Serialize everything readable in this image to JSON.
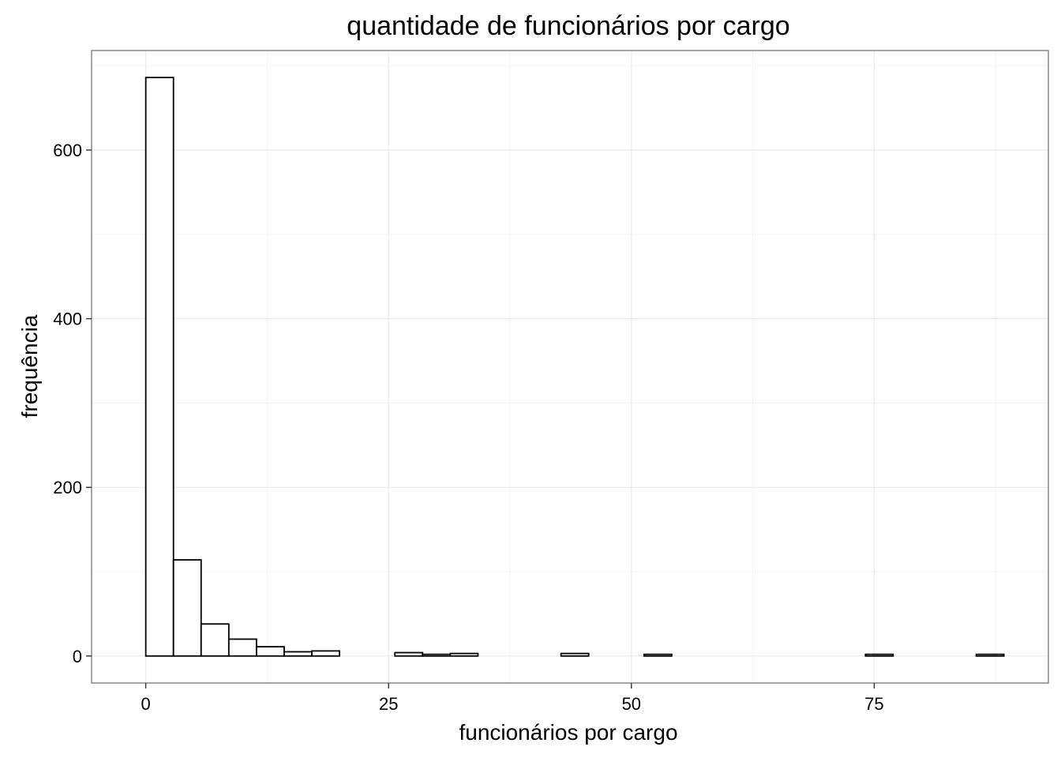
{
  "chart_data": {
    "type": "bar",
    "subtype": "histogram",
    "title": "quantidade de funcionários por cargo",
    "xlabel": "funcionários por cargo",
    "ylabel": "frequência",
    "xlim": [
      -5.58,
      92.93
    ],
    "ylim": [
      -32,
      718
    ],
    "xticks": [
      0,
      25,
      50,
      75
    ],
    "xtick_labels": [
      "0",
      "25",
      "50",
      "75"
    ],
    "yticks": [
      0,
      200,
      400,
      600
    ],
    "ytick_labels": [
      "0",
      "200",
      "400",
      "600"
    ],
    "grid": true,
    "bin_width": 2.85,
    "bins": [
      {
        "x0": -2.85,
        "x1": 0.0,
        "count": 0
      },
      {
        "x0": 0.0,
        "x1": 2.85,
        "count": 686
      },
      {
        "x0": 2.85,
        "x1": 5.7,
        "count": 114
      },
      {
        "x0": 5.7,
        "x1": 8.55,
        "count": 38
      },
      {
        "x0": 8.55,
        "x1": 11.4,
        "count": 20
      },
      {
        "x0": 11.4,
        "x1": 14.25,
        "count": 11
      },
      {
        "x0": 14.25,
        "x1": 17.1,
        "count": 5
      },
      {
        "x0": 17.1,
        "x1": 19.95,
        "count": 6
      },
      {
        "x0": 19.95,
        "x1": 22.8,
        "count": 0
      },
      {
        "x0": 22.8,
        "x1": 25.65,
        "count": 0
      },
      {
        "x0": 25.65,
        "x1": 28.5,
        "count": 4
      },
      {
        "x0": 28.5,
        "x1": 31.35,
        "count": 2
      },
      {
        "x0": 31.35,
        "x1": 34.2,
        "count": 3
      },
      {
        "x0": 34.2,
        "x1": 37.05,
        "count": 0
      },
      {
        "x0": 37.05,
        "x1": 39.9,
        "count": 0
      },
      {
        "x0": 39.9,
        "x1": 42.75,
        "count": 0
      },
      {
        "x0": 42.75,
        "x1": 45.6,
        "count": 3
      },
      {
        "x0": 45.6,
        "x1": 48.45,
        "count": 0
      },
      {
        "x0": 48.45,
        "x1": 51.3,
        "count": 0
      },
      {
        "x0": 51.3,
        "x1": 54.15,
        "count": 2
      },
      {
        "x0": 54.15,
        "x1": 57.0,
        "count": 0
      },
      {
        "x0": 57.0,
        "x1": 59.85,
        "count": 0
      },
      {
        "x0": 59.85,
        "x1": 62.7,
        "count": 0
      },
      {
        "x0": 62.7,
        "x1": 65.55,
        "count": 0
      },
      {
        "x0": 65.55,
        "x1": 68.4,
        "count": 0
      },
      {
        "x0": 68.4,
        "x1": 71.25,
        "count": 0
      },
      {
        "x0": 71.25,
        "x1": 74.1,
        "count": 0
      },
      {
        "x0": 74.1,
        "x1": 76.95,
        "count": 2
      },
      {
        "x0": 76.95,
        "x1": 79.8,
        "count": 0
      },
      {
        "x0": 79.8,
        "x1": 82.65,
        "count": 0
      },
      {
        "x0": 82.65,
        "x1": 85.5,
        "count": 0
      },
      {
        "x0": 85.5,
        "x1": 88.35,
        "count": 2
      }
    ],
    "colors": {
      "bar_fill": "#ffffff",
      "bar_stroke": "#000000",
      "grid": "#ebebeb",
      "panel_border": "#7f7f7f"
    }
  }
}
